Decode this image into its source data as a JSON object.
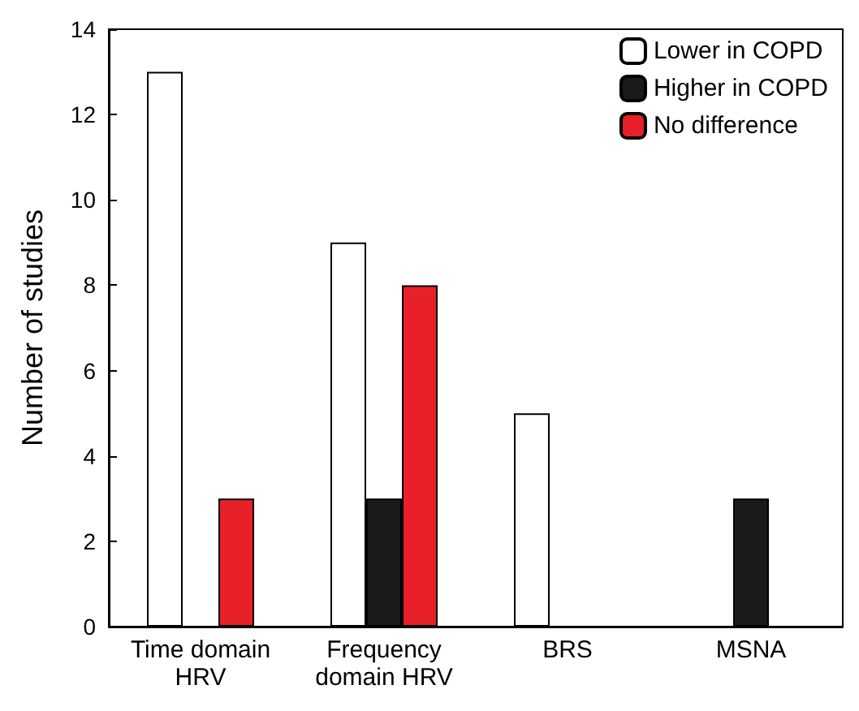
{
  "chart_data": {
    "type": "bar",
    "ylabel": "Number of studies",
    "categories": [
      "Time domain\nHRV",
      "Frequency\ndomain HRV",
      "BRS",
      "MSNA"
    ],
    "series": [
      {
        "name": "Lower in COPD",
        "color": "#ffffff",
        "values": [
          13,
          9,
          5,
          null
        ]
      },
      {
        "name": "Higher in COPD",
        "color": "#1a1a1a",
        "values": [
          null,
          3,
          null,
          3
        ]
      },
      {
        "name": "No difference",
        "color": "#e8202a",
        "values": [
          3,
          8,
          null,
          null
        ]
      }
    ],
    "ylim": [
      0,
      14
    ],
    "yticks": [
      0,
      2,
      4,
      6,
      8,
      10,
      12,
      14
    ],
    "grid": false,
    "legend": "top right"
  }
}
